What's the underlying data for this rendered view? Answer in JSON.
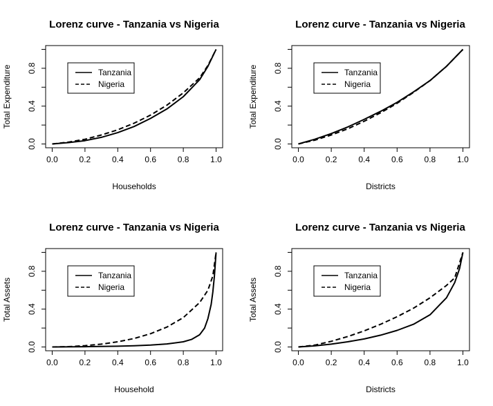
{
  "chart_data": [
    {
      "type": "line",
      "title": "Lorenz curve - Tanzania vs Nigeria",
      "xlabel": "Households",
      "ylabel": "Total Expenditure",
      "xlim": [
        0,
        1
      ],
      "ylim": [
        0,
        1
      ],
      "x_ticks": [
        "0.0",
        "0.2",
        "0.4",
        "0.6",
        "0.8",
        "1.0"
      ],
      "y_ticks": [
        "0.0",
        "0.4",
        "0.8"
      ],
      "grid": false,
      "legend_position": "top-left",
      "series": [
        {
          "name": "Tanzania",
          "line_style": "solid",
          "x": [
            0,
            0.1,
            0.2,
            0.3,
            0.4,
            0.5,
            0.6,
            0.7,
            0.8,
            0.9,
            0.95,
            1.0
          ],
          "y": [
            0,
            0.015,
            0.035,
            0.07,
            0.12,
            0.185,
            0.27,
            0.37,
            0.5,
            0.68,
            0.82,
            1.0
          ]
        },
        {
          "name": "Nigeria",
          "line_style": "dashed",
          "x": [
            0,
            0.1,
            0.2,
            0.3,
            0.4,
            0.5,
            0.6,
            0.7,
            0.8,
            0.9,
            0.95,
            1.0
          ],
          "y": [
            0,
            0.02,
            0.05,
            0.095,
            0.15,
            0.22,
            0.305,
            0.41,
            0.54,
            0.7,
            0.83,
            1.0
          ]
        }
      ]
    },
    {
      "type": "line",
      "title": "Lorenz curve - Tanzania vs Nigeria",
      "xlabel": "Districts",
      "ylabel": "Total Expenditure",
      "xlim": [
        0,
        1
      ],
      "ylim": [
        0,
        1
      ],
      "x_ticks": [
        "0.0",
        "0.2",
        "0.4",
        "0.6",
        "0.8",
        "1.0"
      ],
      "y_ticks": [
        "0.0",
        "0.4",
        "0.8"
      ],
      "grid": false,
      "legend_position": "top-left",
      "series": [
        {
          "name": "Tanzania",
          "line_style": "solid",
          "x": [
            0,
            0.1,
            0.2,
            0.3,
            0.4,
            0.5,
            0.6,
            0.7,
            0.8,
            0.9,
            1.0
          ],
          "y": [
            0,
            0.05,
            0.11,
            0.18,
            0.26,
            0.345,
            0.44,
            0.55,
            0.67,
            0.82,
            1.0
          ]
        },
        {
          "name": "Nigeria",
          "line_style": "dashed",
          "x": [
            0,
            0.1,
            0.2,
            0.3,
            0.4,
            0.5,
            0.6,
            0.7,
            0.8,
            0.9,
            1.0
          ],
          "y": [
            0,
            0.04,
            0.095,
            0.16,
            0.24,
            0.33,
            0.43,
            0.545,
            0.67,
            0.82,
            1.0
          ]
        }
      ]
    },
    {
      "type": "line",
      "title": "Lorenz curve - Tanzania vs Nigeria",
      "xlabel": "Household",
      "ylabel": "Total Assets",
      "xlim": [
        0,
        1
      ],
      "ylim": [
        0,
        1
      ],
      "x_ticks": [
        "0.0",
        "0.2",
        "0.4",
        "0.6",
        "0.8",
        "1.0"
      ],
      "y_ticks": [
        "0.0",
        "0.4",
        "0.8"
      ],
      "grid": false,
      "legend_position": "top-left",
      "series": [
        {
          "name": "Tanzania",
          "line_style": "solid",
          "x": [
            0,
            0.2,
            0.4,
            0.5,
            0.6,
            0.7,
            0.8,
            0.85,
            0.9,
            0.93,
            0.95,
            0.97,
            0.98,
            0.99,
            1.0
          ],
          "y": [
            0,
            0.003,
            0.008,
            0.013,
            0.02,
            0.032,
            0.055,
            0.08,
            0.13,
            0.2,
            0.3,
            0.45,
            0.58,
            0.75,
            1.0
          ]
        },
        {
          "name": "Nigeria",
          "line_style": "dashed",
          "x": [
            0,
            0.1,
            0.2,
            0.3,
            0.4,
            0.5,
            0.6,
            0.7,
            0.8,
            0.9,
            0.95,
            0.98,
            1.0
          ],
          "y": [
            0,
            0.004,
            0.014,
            0.03,
            0.055,
            0.09,
            0.14,
            0.21,
            0.31,
            0.47,
            0.6,
            0.75,
            1.0
          ]
        }
      ]
    },
    {
      "type": "line",
      "title": "Lorenz curve - Tanzania vs Nigeria",
      "xlabel": "Districts",
      "ylabel": "Total Assets",
      "xlim": [
        0,
        1
      ],
      "ylim": [
        0,
        1
      ],
      "x_ticks": [
        "0.0",
        "0.2",
        "0.4",
        "0.6",
        "0.8",
        "1.0"
      ],
      "y_ticks": [
        "0.0",
        "0.4",
        "0.8"
      ],
      "grid": false,
      "legend_position": "top-left",
      "series": [
        {
          "name": "Tanzania",
          "line_style": "solid",
          "x": [
            0,
            0.1,
            0.2,
            0.3,
            0.4,
            0.5,
            0.6,
            0.7,
            0.8,
            0.9,
            0.95,
            0.98,
            1.0
          ],
          "y": [
            0,
            0.012,
            0.03,
            0.055,
            0.085,
            0.125,
            0.175,
            0.24,
            0.34,
            0.52,
            0.68,
            0.83,
            1.0
          ]
        },
        {
          "name": "Nigeria",
          "line_style": "dashed",
          "x": [
            0,
            0.1,
            0.2,
            0.3,
            0.4,
            0.5,
            0.6,
            0.7,
            0.8,
            0.9,
            0.95,
            1.0
          ],
          "y": [
            0,
            0.02,
            0.06,
            0.11,
            0.17,
            0.24,
            0.32,
            0.41,
            0.52,
            0.65,
            0.73,
            1.0
          ]
        }
      ]
    }
  ]
}
